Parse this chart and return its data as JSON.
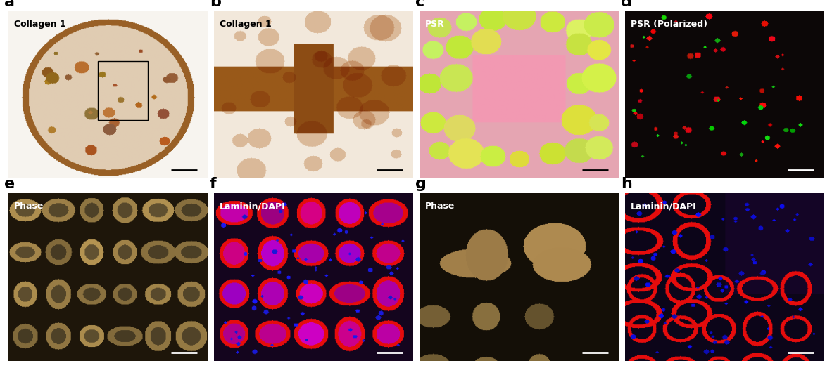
{
  "panel_labels": [
    "a",
    "b",
    "c",
    "d",
    "e",
    "f",
    "g",
    "h"
  ],
  "panel_titles": [
    "Collagen 1",
    "Collagen 1",
    "PSR",
    "PSR (Polarized)",
    "Phase",
    "Laminin/DAPI",
    "Phase",
    "Laminin/DAPI"
  ],
  "title_colors": [
    "black",
    "black",
    "white",
    "white",
    "white",
    "white",
    "white",
    "white"
  ],
  "bg_colors": [
    "#d4b896",
    "#c8a97a",
    "#c8d4a0",
    "#0a0a0a",
    "#2a2010",
    "#1a0a2a",
    "#1e1810",
    "#0a0a20"
  ],
  "label_color": "black",
  "fig_bg": "white",
  "scale_bar_color_dark": "black",
  "scale_bar_color_light": "white",
  "nrows": 2,
  "ncols": 4
}
